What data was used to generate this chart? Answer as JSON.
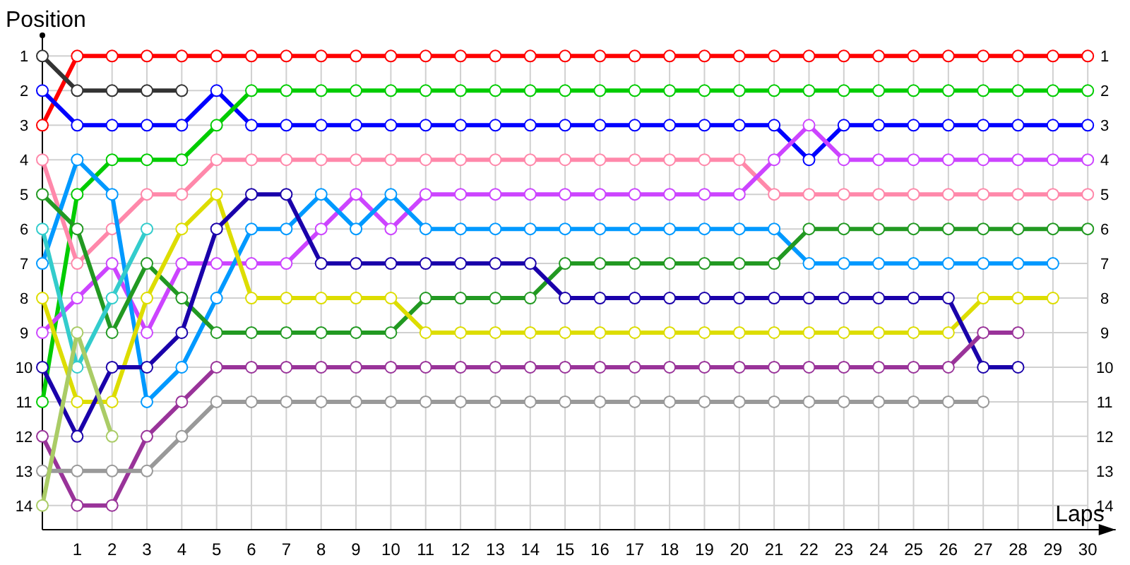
{
  "chart_data": {
    "type": "line",
    "xlabel": "Laps",
    "ylabel": "Position",
    "xlim": [
      0,
      30.8
    ],
    "xticks": [
      1,
      2,
      3,
      4,
      5,
      6,
      7,
      8,
      9,
      10,
      11,
      12,
      13,
      14,
      15,
      16,
      17,
      18,
      19,
      20,
      21,
      22,
      23,
      24,
      25,
      26,
      27,
      28,
      29,
      30
    ],
    "ylim": [
      14.7,
      0.4
    ],
    "yticks": [
      1,
      2,
      3,
      4,
      5,
      6,
      7,
      8,
      9,
      10,
      11,
      12,
      13,
      14
    ],
    "y2lim": [
      14.7,
      0.4
    ],
    "y2ticks": [
      1,
      2,
      3,
      4,
      5,
      6,
      7,
      8,
      9,
      10,
      11,
      12,
      13,
      14
    ],
    "grid": true,
    "marker": "circle",
    "line_style": "solid",
    "x": [
      0,
      1,
      2,
      3,
      4,
      5,
      6,
      7,
      8,
      9,
      10,
      11,
      12,
      13,
      14,
      15,
      16,
      17,
      18,
      19,
      20,
      21,
      22,
      23,
      24,
      25,
      26,
      27,
      28,
      29,
      30
    ],
    "series": [
      {
        "color": "#ff0000",
        "values": [
          3,
          1,
          1,
          1,
          1,
          1,
          1,
          1,
          1,
          1,
          1,
          1,
          1,
          1,
          1,
          1,
          1,
          1,
          1,
          1,
          1,
          1,
          1,
          1,
          1,
          1,
          1,
          1,
          1,
          1,
          1
        ]
      },
      {
        "color": "#333333",
        "values": [
          1,
          2,
          2,
          2,
          2,
          null,
          null,
          null,
          null,
          null,
          null,
          null,
          null,
          null,
          null,
          null,
          null,
          null,
          null,
          null,
          null,
          null,
          null,
          null,
          null,
          null,
          null,
          null,
          null,
          null,
          null
        ]
      },
      {
        "color": "#0000ff",
        "values": [
          2,
          3,
          3,
          3,
          3,
          2,
          3,
          3,
          3,
          3,
          3,
          3,
          3,
          3,
          3,
          3,
          3,
          3,
          3,
          3,
          3,
          3,
          4,
          3,
          3,
          3,
          3,
          3,
          3,
          3,
          3
        ]
      },
      {
        "color": "#00cc00",
        "values": [
          11,
          5,
          4,
          4,
          4,
          3,
          2,
          2,
          2,
          2,
          2,
          2,
          2,
          2,
          2,
          2,
          2,
          2,
          2,
          2,
          2,
          2,
          2,
          2,
          2,
          2,
          2,
          2,
          2,
          2,
          2
        ]
      },
      {
        "color": "#ff88aa",
        "values": [
          4,
          7,
          6,
          5,
          5,
          4,
          4,
          4,
          4,
          4,
          4,
          4,
          4,
          4,
          4,
          4,
          4,
          4,
          4,
          4,
          4,
          5,
          5,
          5,
          5,
          5,
          5,
          5,
          5,
          5,
          5
        ]
      },
      {
        "color": "#cc44ff",
        "values": [
          9,
          8,
          7,
          9,
          7,
          7,
          7,
          7,
          6,
          5,
          6,
          5,
          5,
          5,
          5,
          5,
          5,
          5,
          5,
          5,
          5,
          4,
          3,
          4,
          4,
          4,
          4,
          4,
          4,
          4,
          4
        ]
      },
      {
        "color": "#0099ff",
        "values": [
          7,
          4,
          5,
          11,
          10,
          8,
          6,
          6,
          5,
          6,
          5,
          6,
          6,
          6,
          6,
          6,
          6,
          6,
          6,
          6,
          6,
          6,
          7,
          7,
          7,
          7,
          7,
          7,
          7,
          7,
          null
        ]
      },
      {
        "color": "#229922",
        "values": [
          5,
          6,
          9,
          7,
          8,
          9,
          9,
          9,
          9,
          9,
          9,
          8,
          8,
          8,
          8,
          7,
          7,
          7,
          7,
          7,
          7,
          7,
          6,
          6,
          6,
          6,
          6,
          6,
          6,
          6,
          6
        ]
      },
      {
        "color": "#33cccc",
        "values": [
          6,
          10,
          8,
          6,
          null,
          null,
          null,
          null,
          null,
          null,
          null,
          null,
          null,
          null,
          null,
          null,
          null,
          null,
          null,
          null,
          null,
          null,
          null,
          null,
          null,
          null,
          null,
          null,
          null,
          null,
          null
        ]
      },
      {
        "color": "#dddd00",
        "values": [
          8,
          11,
          11,
          8,
          6,
          5,
          8,
          8,
          8,
          8,
          8,
          9,
          9,
          9,
          9,
          9,
          9,
          9,
          9,
          9,
          9,
          9,
          9,
          9,
          9,
          9,
          9,
          8,
          8,
          8,
          null
        ]
      },
      {
        "color": "#1a00aa",
        "values": [
          10,
          12,
          10,
          10,
          9,
          6,
          5,
          5,
          7,
          7,
          7,
          7,
          7,
          7,
          7,
          8,
          8,
          8,
          8,
          8,
          8,
          8,
          8,
          8,
          8,
          8,
          8,
          10,
          10,
          null,
          null
        ]
      },
      {
        "color": "#993399",
        "values": [
          12,
          14,
          14,
          12,
          11,
          10,
          10,
          10,
          10,
          10,
          10,
          10,
          10,
          10,
          10,
          10,
          10,
          10,
          10,
          10,
          10,
          10,
          10,
          10,
          10,
          10,
          10,
          9,
          9,
          null,
          null
        ]
      },
      {
        "color": "#999999",
        "values": [
          13,
          13,
          13,
          13,
          12,
          11,
          11,
          11,
          11,
          11,
          11,
          11,
          11,
          11,
          11,
          11,
          11,
          11,
          11,
          11,
          11,
          11,
          11,
          11,
          11,
          11,
          11,
          11,
          null,
          null,
          null
        ]
      },
      {
        "color": "#aacc66",
        "values": [
          14,
          9,
          12,
          null,
          null,
          null,
          null,
          null,
          null,
          null,
          null,
          null,
          null,
          null,
          null,
          null,
          null,
          null,
          null,
          null,
          null,
          null,
          null,
          null,
          null,
          null,
          null,
          null,
          null,
          null,
          null
        ]
      }
    ]
  }
}
